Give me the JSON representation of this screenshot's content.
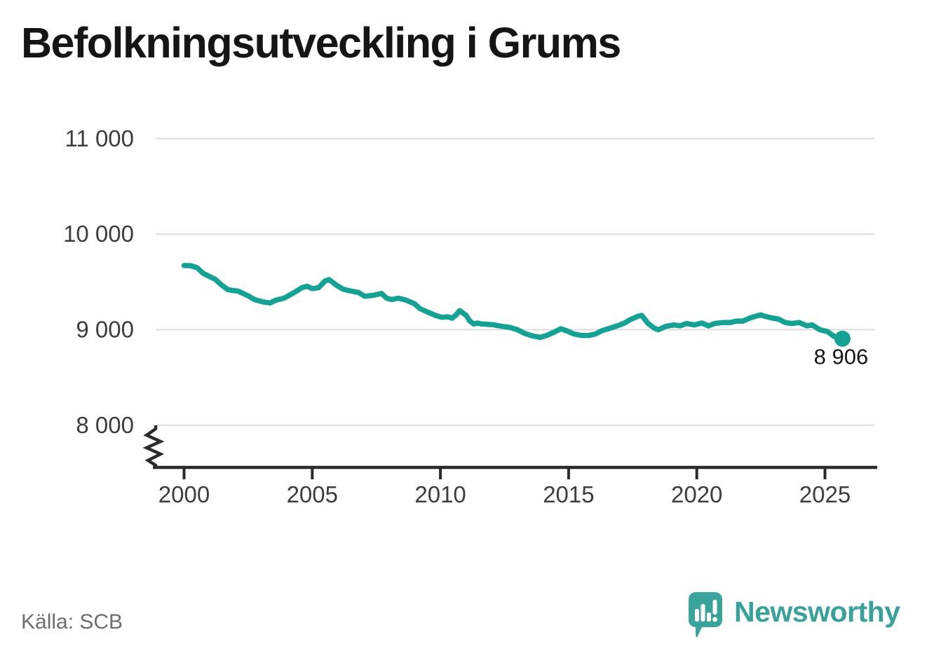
{
  "title": "Befolkningsutveckling i Grums",
  "source": "Källa: SCB",
  "branding": {
    "name": "Newsworthy",
    "icon": "bar-chart-speech-bubble-icon"
  },
  "colors": {
    "line": "#15a294",
    "grid": "#dcdcdc",
    "axis": "#2b2b2b",
    "tick_text": "#3d3d3d",
    "title_text": "#151515",
    "source_text": "#6e6e6e",
    "brand": "#38a29a",
    "background": "#ffffff"
  },
  "chart_data": {
    "type": "line",
    "title": "Befolkningsutveckling i Grums",
    "xlabel": "",
    "ylabel": "",
    "grid": "horizontal",
    "legend": "none",
    "axis_break": true,
    "ylim": [
      8000,
      11000
    ],
    "xlim": [
      1998.8,
      2027
    ],
    "x_ticks": [
      "2000",
      "2005",
      "2010",
      "2015",
      "2020",
      "2025"
    ],
    "y_ticks": [
      {
        "value": 11000,
        "label": "11 000"
      },
      {
        "value": 10000,
        "label": "10 000"
      },
      {
        "value": 9000,
        "label": "9 000"
      },
      {
        "value": 8000,
        "label": "8 000"
      }
    ],
    "end_label": "8 906",
    "series": [
      {
        "name": "Befolkning i Grums",
        "points": [
          [
            2000.0,
            9672
          ],
          [
            2000.25,
            9670
          ],
          [
            2000.5,
            9650
          ],
          [
            2000.75,
            9590
          ],
          [
            2001.0,
            9555
          ],
          [
            2001.2,
            9530
          ],
          [
            2001.45,
            9470
          ],
          [
            2001.7,
            9420
          ],
          [
            2001.9,
            9410
          ],
          [
            2002.1,
            9405
          ],
          [
            2002.5,
            9355
          ],
          [
            2002.75,
            9315
          ],
          [
            2003.1,
            9290
          ],
          [
            2003.35,
            9280
          ],
          [
            2003.6,
            9310
          ],
          [
            2003.9,
            9330
          ],
          [
            2004.3,
            9390
          ],
          [
            2004.6,
            9440
          ],
          [
            2004.8,
            9455
          ],
          [
            2005.0,
            9430
          ],
          [
            2005.25,
            9440
          ],
          [
            2005.5,
            9510
          ],
          [
            2005.65,
            9525
          ],
          [
            2005.95,
            9465
          ],
          [
            2006.2,
            9425
          ],
          [
            2006.5,
            9405
          ],
          [
            2006.8,
            9390
          ],
          [
            2007.05,
            9350
          ],
          [
            2007.4,
            9360
          ],
          [
            2007.7,
            9380
          ],
          [
            2007.9,
            9330
          ],
          [
            2008.1,
            9315
          ],
          [
            2008.35,
            9330
          ],
          [
            2008.65,
            9310
          ],
          [
            2009.0,
            9270
          ],
          [
            2009.2,
            9220
          ],
          [
            2009.5,
            9185
          ],
          [
            2009.8,
            9150
          ],
          [
            2010.05,
            9130
          ],
          [
            2010.3,
            9135
          ],
          [
            2010.45,
            9120
          ],
          [
            2010.6,
            9150
          ],
          [
            2010.75,
            9200
          ],
          [
            2011.0,
            9150
          ],
          [
            2011.15,
            9090
          ],
          [
            2011.3,
            9060
          ],
          [
            2011.45,
            9070
          ],
          [
            2011.6,
            9060
          ],
          [
            2011.9,
            9055
          ],
          [
            2012.1,
            9050
          ],
          [
            2012.4,
            9035
          ],
          [
            2012.7,
            9025
          ],
          [
            2013.0,
            9000
          ],
          [
            2013.3,
            8960
          ],
          [
            2013.6,
            8935
          ],
          [
            2013.9,
            8920
          ],
          [
            2014.15,
            8940
          ],
          [
            2014.4,
            8970
          ],
          [
            2014.7,
            9010
          ],
          [
            2015.0,
            8980
          ],
          [
            2015.2,
            8955
          ],
          [
            2015.5,
            8940
          ],
          [
            2015.8,
            8940
          ],
          [
            2016.05,
            8955
          ],
          [
            2016.3,
            8990
          ],
          [
            2016.6,
            9015
          ],
          [
            2016.9,
            9040
          ],
          [
            2017.15,
            9065
          ],
          [
            2017.4,
            9105
          ],
          [
            2017.7,
            9140
          ],
          [
            2017.85,
            9150
          ],
          [
            2018.1,
            9065
          ],
          [
            2018.35,
            9015
          ],
          [
            2018.5,
            9000
          ],
          [
            2018.8,
            9035
          ],
          [
            2019.1,
            9050
          ],
          [
            2019.35,
            9040
          ],
          [
            2019.6,
            9065
          ],
          [
            2019.9,
            9050
          ],
          [
            2020.2,
            9070
          ],
          [
            2020.45,
            9040
          ],
          [
            2020.7,
            9065
          ],
          [
            2021.0,
            9075
          ],
          [
            2021.3,
            9075
          ],
          [
            2021.55,
            9090
          ],
          [
            2021.8,
            9090
          ],
          [
            2022.1,
            9125
          ],
          [
            2022.35,
            9145
          ],
          [
            2022.5,
            9155
          ],
          [
            2022.65,
            9140
          ],
          [
            2022.9,
            9125
          ],
          [
            2023.2,
            9110
          ],
          [
            2023.45,
            9075
          ],
          [
            2023.7,
            9065
          ],
          [
            2024.0,
            9075
          ],
          [
            2024.3,
            9040
          ],
          [
            2024.5,
            9050
          ],
          [
            2024.8,
            9000
          ],
          [
            2025.1,
            8980
          ],
          [
            2025.35,
            8930
          ],
          [
            2025.6,
            8906
          ]
        ],
        "end_value": 8906
      }
    ]
  }
}
